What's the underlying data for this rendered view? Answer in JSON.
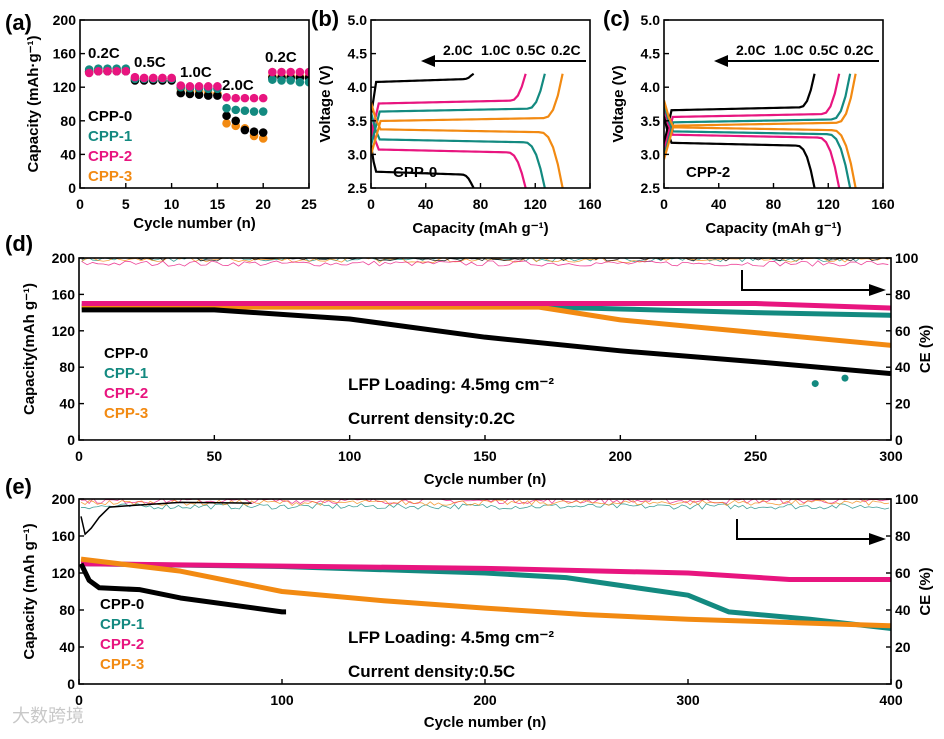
{
  "colors": {
    "CPP-0": "#000000",
    "CPP-1": "#138a80",
    "CPP-2": "#e8157f",
    "CPP-3": "#f28a12",
    "axis": "#000000"
  },
  "watermark": "大数跨境",
  "chart_data": [
    {
      "id": "a",
      "panel_label": "(a)",
      "type": "scatter",
      "xlabel": "Cycle number (n)",
      "ylabel": "Capacity (mAh·g⁻¹)",
      "xlim": [
        0,
        25
      ],
      "ylim": [
        0,
        200
      ],
      "xticks": [
        0,
        5,
        10,
        15,
        20,
        25
      ],
      "yticks": [
        0,
        40,
        80,
        120,
        160,
        200
      ],
      "rate_labels": [
        "0.2C",
        "0.5C",
        "1.0C",
        "2.0C",
        "0.2C"
      ],
      "legend": [
        "CPP-0",
        "CPP-1",
        "CPP-2",
        "CPP-3"
      ],
      "x": [
        1,
        2,
        3,
        4,
        5,
        6,
        7,
        8,
        9,
        10,
        11,
        12,
        13,
        14,
        15,
        16,
        17,
        18,
        19,
        20,
        21,
        22,
        23,
        24,
        25
      ],
      "series": [
        {
          "name": "CPP-3",
          "values": [
            138,
            140,
            140,
            140,
            140,
            130,
            130,
            130,
            130,
            130,
            118,
            116,
            115,
            113,
            112,
            77,
            74,
            71,
            62,
            59,
            133,
            133,
            133,
            133,
            133
          ]
        },
        {
          "name": "CPP-0",
          "values": [
            139,
            139,
            139,
            139,
            139,
            128,
            128,
            128,
            128,
            128,
            113,
            112,
            111,
            110,
            110,
            86,
            80,
            69,
            67,
            66,
            131,
            131,
            131,
            131,
            131
          ]
        },
        {
          "name": "CPP-1",
          "values": [
            141,
            142,
            142,
            142,
            142,
            130,
            130,
            130,
            130,
            130,
            120,
            119,
            119,
            118,
            118,
            95,
            93,
            92,
            91,
            91,
            129,
            128,
            128,
            126,
            126
          ]
        },
        {
          "name": "CPP-2",
          "values": [
            137,
            139,
            139,
            139,
            139,
            132,
            131,
            131,
            131,
            131,
            122,
            121,
            121,
            121,
            121,
            108,
            107,
            107,
            107,
            107,
            138,
            138,
            138,
            138,
            138
          ]
        }
      ]
    },
    {
      "id": "b",
      "panel_label": "(b)",
      "type": "line",
      "xlabel": "Capacity (mAh g⁻¹)",
      "ylabel": "Voltage (V)",
      "xlim": [
        0,
        160
      ],
      "ylim": [
        2.5,
        5.0
      ],
      "xticks": [
        0,
        40,
        80,
        120,
        160
      ],
      "yticks": [
        2.5,
        3.0,
        3.5,
        4.0,
        4.5,
        5.0
      ],
      "sample": "CPP-0",
      "arrow_labels": [
        "2.0C",
        "1.0C",
        "0.5C",
        "0.2C"
      ],
      "series": [
        {
          "name": "2.0C",
          "color": "#000000",
          "capacity": 75,
          "charge_v": 4.1,
          "discharge_v": 2.72
        },
        {
          "name": "1.0C",
          "color": "#e8157f",
          "capacity": 113,
          "charge_v": 3.78,
          "discharge_v": 3.05
        },
        {
          "name": "0.5C",
          "color": "#138a80",
          "capacity": 127,
          "charge_v": 3.66,
          "discharge_v": 3.2
        },
        {
          "name": "0.2C",
          "color": "#f28a12",
          "capacity": 140,
          "charge_v": 3.52,
          "discharge_v": 3.35
        }
      ]
    },
    {
      "id": "c",
      "panel_label": "(c)",
      "type": "line",
      "xlabel": "Capacity (mAh g⁻¹)",
      "ylabel": "Voltage (V)",
      "xlim": [
        0,
        160
      ],
      "ylim": [
        2.5,
        5.0
      ],
      "xticks": [
        0,
        40,
        80,
        120,
        160
      ],
      "yticks": [
        2.5,
        3.0,
        3.5,
        4.0,
        4.5,
        5.0
      ],
      "sample": "CPP-2",
      "arrow_labels": [
        "2.0C",
        "1.0C",
        "0.5C",
        "0.2C"
      ],
      "series": [
        {
          "name": "2.0C",
          "color": "#000000",
          "capacity": 110,
          "charge_v": 3.68,
          "discharge_v": 3.15
        },
        {
          "name": "1.0C",
          "color": "#e8157f",
          "capacity": 128,
          "charge_v": 3.58,
          "discharge_v": 3.27
        },
        {
          "name": "0.5C",
          "color": "#138a80",
          "capacity": 136,
          "charge_v": 3.5,
          "discharge_v": 3.32
        },
        {
          "name": "0.2C",
          "color": "#f28a12",
          "capacity": 140,
          "charge_v": 3.45,
          "discharge_v": 3.38
        }
      ]
    },
    {
      "id": "d",
      "panel_label": "(d)",
      "type": "scatter",
      "xlabel": "Cycle number (n)",
      "ylabel": "Capacity(mAh g⁻¹)",
      "y2label": "CE (%)",
      "xlim": [
        0,
        300
      ],
      "ylim": [
        0,
        200
      ],
      "y2lim": [
        0,
        100
      ],
      "xticks": [
        0,
        50,
        100,
        150,
        200,
        250,
        300
      ],
      "yticks": [
        0,
        40,
        80,
        120,
        160,
        200
      ],
      "y2ticks": [
        0,
        20,
        40,
        60,
        80,
        100
      ],
      "legend": [
        "CPP-0",
        "CPP-1",
        "CPP-2",
        "CPP-3"
      ],
      "annotations": [
        "LFP Loading: 4.5mg cm⁻²",
        "Current density:0.2C"
      ],
      "series": [
        {
          "name": "CPP-1",
          "points": [
            [
              1,
              147
            ],
            [
              150,
              148
            ],
            [
              200,
              144
            ],
            [
              250,
              140
            ],
            [
              300,
              137
            ]
          ],
          "outliers": [
            [
              272,
              62
            ],
            [
              283,
              68
            ]
          ],
          "ce": 99.5
        },
        {
          "name": "CPP-3",
          "points": [
            [
              1,
              146
            ],
            [
              170,
              146
            ],
            [
              200,
              132
            ],
            [
              250,
              118
            ],
            [
              300,
              104
            ]
          ],
          "ce": 99
        },
        {
          "name": "CPP-2",
          "points": [
            [
              1,
              150
            ],
            [
              200,
              150
            ],
            [
              250,
              150
            ],
            [
              300,
              145
            ]
          ],
          "ce": 97
        },
        {
          "name": "CPP-0",
          "points": [
            [
              1,
              143
            ],
            [
              50,
              143
            ],
            [
              100,
              133
            ],
            [
              150,
              113
            ],
            [
              200,
              98
            ],
            [
              250,
              86
            ],
            [
              300,
              73
            ]
          ],
          "ce": 99.8
        }
      ]
    },
    {
      "id": "e",
      "panel_label": "(e)",
      "type": "scatter",
      "xlabel": "Cycle number (n)",
      "ylabel": "Capacity (mAh g⁻¹)",
      "y2label": "CE (%)",
      "xlim": [
        0,
        400
      ],
      "ylim": [
        0,
        200
      ],
      "y2lim": [
        0,
        100
      ],
      "xticks": [
        0,
        100,
        200,
        300,
        400
      ],
      "yticks": [
        0,
        40,
        80,
        120,
        160,
        200
      ],
      "y2ticks": [
        0,
        20,
        40,
        60,
        80,
        100
      ],
      "legend": [
        "CPP-0",
        "CPP-1",
        "CPP-2",
        "CPP-3"
      ],
      "annotations": [
        "LFP Loading: 4.5mg cm⁻²",
        "Current density:0.5C"
      ],
      "series": [
        {
          "name": "CPP-1",
          "points": [
            [
              1,
              130
            ],
            [
              100,
              127
            ],
            [
              200,
              120
            ],
            [
              240,
              115
            ],
            [
              300,
              96
            ],
            [
              320,
              78
            ],
            [
              360,
              70
            ],
            [
              400,
              60
            ]
          ],
          "ce": 96
        },
        {
          "name": "CPP-2",
          "points": [
            [
              1,
              130
            ],
            [
              200,
              125
            ],
            [
              300,
              120
            ],
            [
              350,
              113
            ],
            [
              400,
              113
            ]
          ],
          "ce": 99
        },
        {
          "name": "CPP-3",
          "points": [
            [
              1,
              135
            ],
            [
              50,
              122
            ],
            [
              100,
              100
            ],
            [
              150,
              90
            ],
            [
              200,
              82
            ],
            [
              250,
              75
            ],
            [
              300,
              70
            ],
            [
              400,
              63
            ]
          ],
          "ce": 98
        },
        {
          "name": "CPP-0",
          "points": [
            [
              1,
              130
            ],
            [
              5,
              112
            ],
            [
              10,
              104
            ],
            [
              30,
              102
            ],
            [
              50,
              93
            ],
            [
              100,
              78
            ],
            [
              102,
              78
            ]
          ],
          "ce_points": [
            [
              1,
              90
            ],
            [
              3,
              80
            ],
            [
              6,
              84
            ],
            [
              10,
              90
            ],
            [
              15,
              95
            ],
            [
              25,
              97
            ],
            [
              50,
              98
            ],
            [
              85,
              98
            ]
          ]
        }
      ]
    }
  ]
}
